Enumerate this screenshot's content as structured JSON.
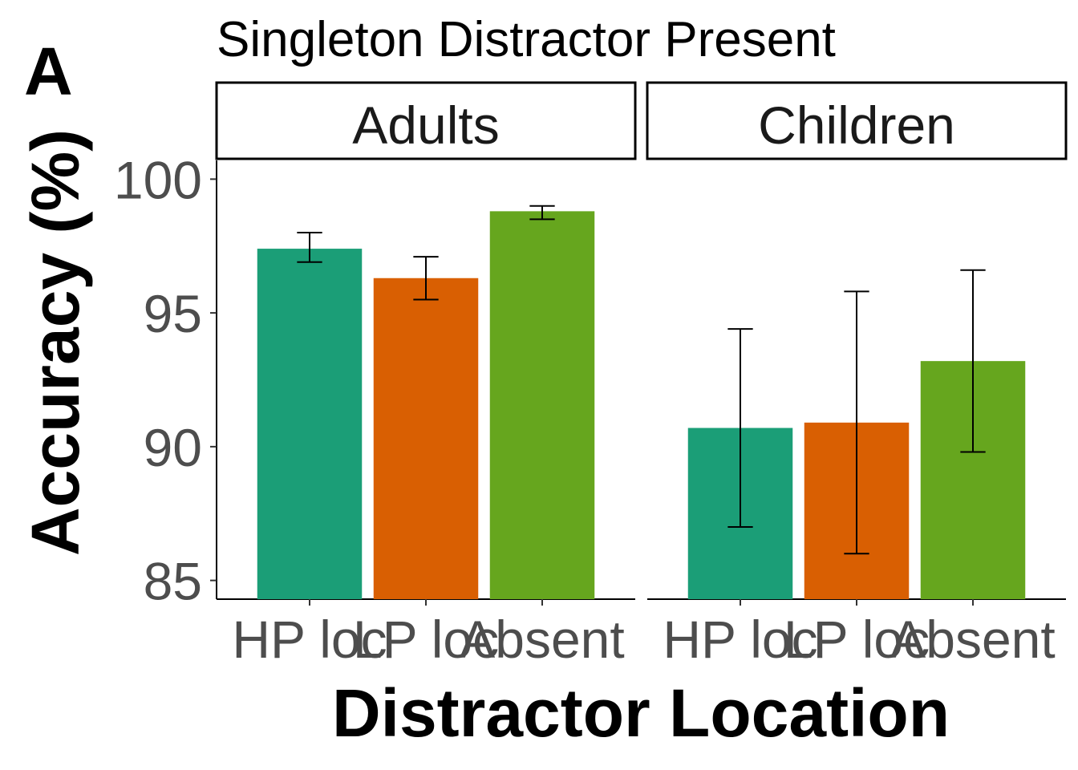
{
  "panel_tag": "A",
  "chart_data": {
    "type": "bar",
    "title": "Singleton Distractor Present",
    "xlabel": "Distractor Location",
    "ylabel": "Accuracy (%)",
    "ylim": [
      84.3,
      100.7
    ],
    "yticks": [
      85,
      90,
      95,
      100
    ],
    "categories": [
      "HP loc",
      "LP loc",
      "Absent"
    ],
    "colors": [
      "#1b9e77",
      "#d95f02",
      "#66a61e"
    ],
    "grid": false,
    "legend": "none",
    "panels": [
      {
        "name": "Adults",
        "values": [
          97.4,
          96.3,
          98.8
        ],
        "error_low": [
          96.9,
          95.5,
          98.5
        ],
        "error_high": [
          98.0,
          97.1,
          99.0
        ]
      },
      {
        "name": "Children",
        "values": [
          90.7,
          90.9,
          93.2
        ],
        "error_low": [
          87.0,
          86.0,
          89.8
        ],
        "error_high": [
          94.4,
          95.8,
          96.6
        ]
      }
    ]
  }
}
